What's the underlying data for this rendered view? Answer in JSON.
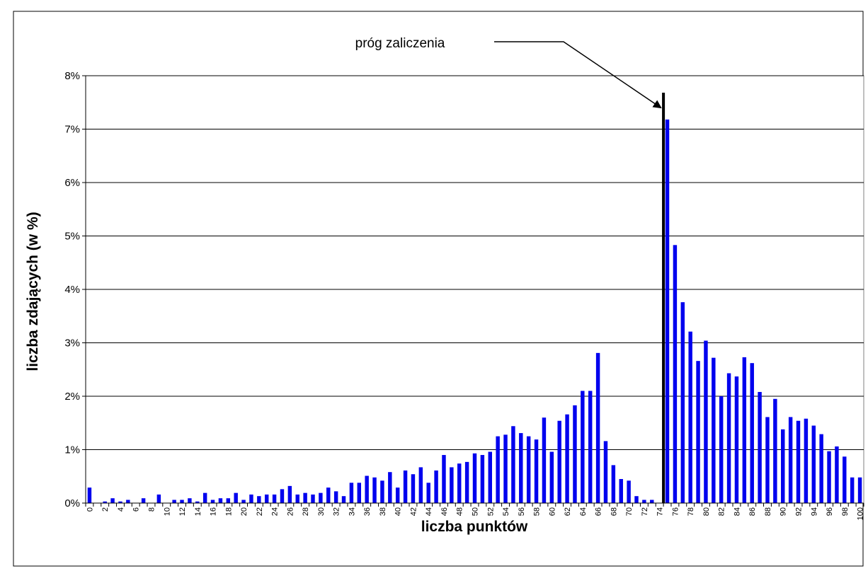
{
  "chart_data": {
    "type": "bar",
    "title": "",
    "xlabel": "liczba punktów",
    "ylabel": "liczba zdających (w %)",
    "ylim": [
      0,
      8
    ],
    "y_ticks": [
      0,
      1,
      2,
      3,
      4,
      5,
      6,
      7,
      8
    ],
    "y_tick_suffix": "%",
    "grid": true,
    "bar_color": "#0000ee",
    "categories": [
      0,
      1,
      2,
      3,
      4,
      5,
      6,
      7,
      8,
      9,
      10,
      11,
      12,
      13,
      14,
      15,
      16,
      17,
      18,
      19,
      20,
      21,
      22,
      23,
      24,
      25,
      26,
      27,
      28,
      29,
      30,
      31,
      32,
      33,
      34,
      35,
      36,
      37,
      38,
      39,
      40,
      41,
      42,
      43,
      44,
      45,
      46,
      47,
      48,
      49,
      50,
      51,
      52,
      53,
      54,
      55,
      56,
      57,
      58,
      59,
      60,
      61,
      62,
      63,
      64,
      65,
      66,
      67,
      68,
      69,
      70,
      71,
      72,
      73,
      74,
      75,
      76,
      77,
      78,
      79,
      80,
      81,
      82,
      83,
      84,
      85,
      86,
      87,
      88,
      89,
      90,
      91,
      92,
      93,
      94,
      95,
      96,
      97,
      98,
      99,
      100
    ],
    "x_tick_labels": [
      "0",
      "2",
      "4",
      "6",
      "8",
      "10",
      "12",
      "14",
      "16",
      "18",
      "20",
      "22",
      "24",
      "26",
      "28",
      "30",
      "32",
      "34",
      "36",
      "38",
      "40",
      "42",
      "44",
      "46",
      "48",
      "50",
      "52",
      "54",
      "56",
      "58",
      "60",
      "62",
      "64",
      "66",
      "68",
      "70",
      "72",
      "74",
      "76",
      "78",
      "80",
      "82",
      "84",
      "86",
      "88",
      "90",
      "92",
      "94",
      "96",
      "98",
      "100"
    ],
    "values": [
      0.29,
      0.0,
      0.03,
      0.09,
      0.03,
      0.06,
      0.0,
      0.09,
      0.0,
      0.16,
      0.0,
      0.06,
      0.06,
      0.09,
      0.03,
      0.19,
      0.06,
      0.09,
      0.09,
      0.19,
      0.06,
      0.16,
      0.13,
      0.16,
      0.16,
      0.26,
      0.32,
      0.16,
      0.19,
      0.16,
      0.19,
      0.29,
      0.22,
      0.13,
      0.38,
      0.38,
      0.51,
      0.48,
      0.42,
      0.58,
      0.29,
      0.61,
      0.54,
      0.67,
      0.38,
      0.61,
      0.9,
      0.67,
      0.74,
      0.77,
      0.93,
      0.9,
      0.96,
      1.25,
      1.28,
      1.44,
      1.31,
      1.25,
      1.19,
      1.6,
      0.96,
      1.54,
      1.66,
      1.83,
      2.1,
      2.1,
      2.81,
      1.16,
      0.71,
      0.45,
      0.42,
      0.13,
      0.06,
      0.06,
      0.0,
      7.18,
      4.83,
      3.76,
      3.21,
      2.66,
      3.04,
      2.72,
      2.0,
      2.43,
      2.37,
      2.73,
      2.62,
      2.08,
      1.61,
      1.95,
      1.38,
      1.61,
      1.54,
      1.58,
      1.45,
      1.29,
      0.97,
      1.06,
      0.87,
      0.48,
      0.48
    ],
    "annotation": {
      "text": "próg zaliczenia",
      "threshold_x": 75
    }
  }
}
